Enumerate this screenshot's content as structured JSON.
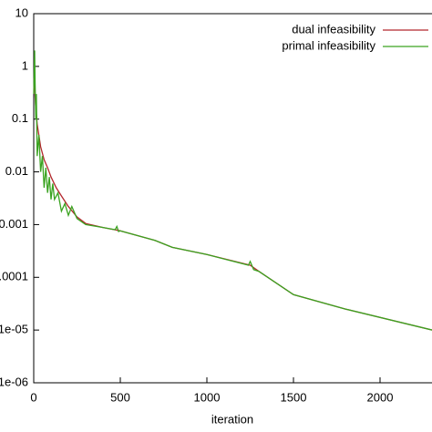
{
  "chart_data": {
    "type": "line",
    "xlabel": "iteration",
    "xlim": [
      0,
      2300
    ],
    "xticks": [
      0,
      500,
      1000,
      1500,
      2000
    ],
    "ylim": [
      1e-06,
      10
    ],
    "log_y": true,
    "legend": "top-right",
    "yticks": [
      10,
      1,
      0.1,
      0.01,
      0.001,
      0.0001,
      {
        "value": 1e-05,
        "label": "1e-05"
      },
      {
        "value": 1e-06,
        "label": "1e-06"
      }
    ],
    "series": [
      {
        "name": "dual infeasibility",
        "color": "#b3282d",
        "x": [
          2,
          10,
          20,
          40,
          60,
          80,
          100,
          130,
          160,
          200,
          250,
          300,
          400,
          500,
          700,
          800,
          1000,
          1250,
          1300,
          1500,
          1800,
          2300
        ],
        "values": [
          0.6,
          0.2,
          0.08,
          0.03,
          0.017,
          0.012,
          0.008,
          0.005,
          0.0035,
          0.0022,
          0.0014,
          0.00105,
          0.00088,
          0.00076,
          0.0005,
          0.00037,
          0.00027,
          0.00017,
          0.00013,
          4.7e-05,
          2.5e-05,
          1e-05
        ]
      },
      {
        "name": "primal infeasibility",
        "color": "#3aa320",
        "x": [
          0,
          5,
          8,
          12,
          15,
          20,
          30,
          40,
          50,
          60,
          70,
          80,
          90,
          100,
          110,
          120,
          140,
          160,
          180,
          200,
          220,
          250,
          300,
          400,
          470,
          480,
          490,
          500,
          700,
          800,
          1000,
          1240,
          1250,
          1270,
          1300,
          1500,
          1800,
          2300
        ],
        "values": [
          0.3,
          2,
          0.5,
          0.1,
          0.3,
          0.02,
          0.05,
          0.01,
          0.02,
          0.005,
          0.012,
          0.004,
          0.008,
          0.003,
          0.006,
          0.003,
          0.004,
          0.0018,
          0.0025,
          0.0015,
          0.0022,
          0.0013,
          0.001,
          0.00088,
          0.0008,
          0.00092,
          0.00074,
          0.00076,
          0.0005,
          0.00037,
          0.00027,
          0.00017,
          0.0002,
          0.00014,
          0.00013,
          4.7e-05,
          2.5e-05,
          1e-05
        ]
      }
    ]
  }
}
